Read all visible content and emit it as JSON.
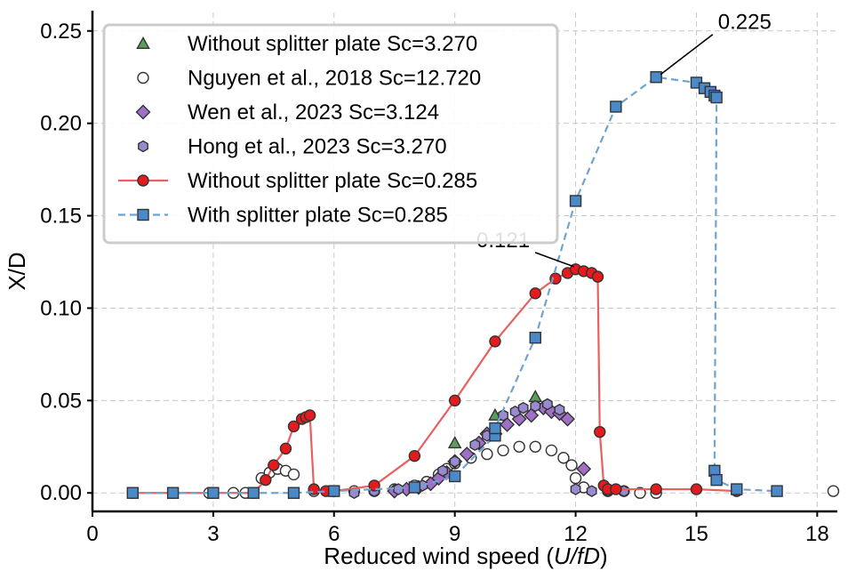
{
  "chart_data": {
    "type": "scatter",
    "xlabel_main": "Reduced wind speed (",
    "xlabel_italic": "U/fD",
    "xlabel_end": ")",
    "ylabel": "X/D",
    "xlim": [
      0,
      18.5
    ],
    "ylim": [
      -0.01,
      0.26
    ],
    "xticks": [
      0,
      3,
      6,
      9,
      12,
      15,
      18
    ],
    "xtick_labels": [
      "0",
      "3",
      "6",
      "9",
      "12",
      "15",
      "18"
    ],
    "yticks": [
      0.0,
      0.05,
      0.1,
      0.15,
      0.2,
      0.25
    ],
    "ytick_labels": [
      "0.00",
      "0.05",
      "0.10",
      "0.15",
      "0.20",
      "0.25"
    ],
    "grid": true,
    "legend_position": "top-left",
    "series": [
      {
        "name": "Without splitter plate Sc=3.270",
        "marker": "triangle",
        "color": "#5a9e5a",
        "line": "none",
        "points": [
          [
            9.0,
            0.027
          ],
          [
            10.0,
            0.042
          ],
          [
            11.0,
            0.052
          ]
        ]
      },
      {
        "name": "Nguyen et al., 2018 Sc=12.720",
        "marker": "circle-open",
        "color": "#ffffff",
        "line": "none",
        "points": [
          [
            2.9,
            0.0
          ],
          [
            3.5,
            0.0
          ],
          [
            3.8,
            0.0
          ],
          [
            4.2,
            0.008
          ],
          [
            4.4,
            0.011
          ],
          [
            4.6,
            0.013
          ],
          [
            4.8,
            0.012
          ],
          [
            5.0,
            0.01
          ],
          [
            5.5,
            0.001
          ],
          [
            6.0,
            0.001
          ],
          [
            6.5,
            0.001
          ],
          [
            7.0,
            0.001
          ],
          [
            7.5,
            0.002
          ],
          [
            8.0,
            0.004
          ],
          [
            8.3,
            0.006
          ],
          [
            8.6,
            0.01
          ],
          [
            8.8,
            0.013
          ],
          [
            9.0,
            0.016
          ],
          [
            9.4,
            0.019
          ],
          [
            9.8,
            0.021
          ],
          [
            10.2,
            0.023
          ],
          [
            10.6,
            0.025
          ],
          [
            11.0,
            0.025
          ],
          [
            11.4,
            0.023
          ],
          [
            11.7,
            0.019
          ],
          [
            11.9,
            0.015
          ],
          [
            12.0,
            0.008
          ],
          [
            12.2,
            0.003
          ],
          [
            12.8,
            0.001
          ],
          [
            13.2,
            0.001
          ],
          [
            13.6,
            0.0
          ],
          [
            14.0,
            0.0
          ],
          [
            18.4,
            0.001
          ]
        ]
      },
      {
        "name": "Wen et al., 2023 Sc=3.124",
        "marker": "diamond",
        "color": "#a070c8",
        "line": "none",
        "points": [
          [
            7.5,
            0.001
          ],
          [
            7.8,
            0.002
          ],
          [
            8.1,
            0.003
          ],
          [
            8.4,
            0.005
          ],
          [
            8.6,
            0.008
          ],
          [
            8.8,
            0.011
          ],
          [
            9.0,
            0.017
          ],
          [
            9.3,
            0.021
          ],
          [
            9.6,
            0.027
          ],
          [
            9.8,
            0.032
          ],
          [
            10.0,
            0.032
          ],
          [
            10.3,
            0.037
          ],
          [
            10.6,
            0.04
          ],
          [
            10.9,
            0.042
          ],
          [
            11.2,
            0.046
          ],
          [
            11.4,
            0.044
          ],
          [
            11.6,
            0.043
          ],
          [
            11.8,
            0.04
          ],
          [
            12.2,
            0.013
          ]
        ]
      },
      {
        "name": "Hong et al., 2023 Sc=3.270",
        "marker": "hexagon",
        "color": "#9a8ad0",
        "line": "none",
        "points": [
          [
            6.5,
            0.0
          ],
          [
            7.0,
            0.001
          ],
          [
            7.6,
            0.002
          ],
          [
            8.2,
            0.004
          ],
          [
            8.7,
            0.012
          ],
          [
            9.0,
            0.017
          ],
          [
            9.5,
            0.026
          ],
          [
            9.8,
            0.031
          ],
          [
            10.2,
            0.042
          ],
          [
            10.5,
            0.044
          ],
          [
            10.7,
            0.046
          ],
          [
            11.0,
            0.047
          ],
          [
            11.3,
            0.048
          ],
          [
            11.6,
            0.045
          ],
          [
            12.0,
            0.002
          ],
          [
            12.4,
            0.001
          ],
          [
            12.8,
            0.001
          ],
          [
            13.2,
            0.001
          ]
        ]
      },
      {
        "name": "Without splitter plate Sc=0.285",
        "marker": "circle",
        "color": "#e41a1c",
        "linecolor": "#e86060",
        "line": "solid",
        "points": [
          [
            1.0,
            0.0
          ],
          [
            2.0,
            0.0
          ],
          [
            3.0,
            0.0
          ],
          [
            4.0,
            0.0
          ],
          [
            4.3,
            0.007
          ],
          [
            4.5,
            0.015
          ],
          [
            4.8,
            0.024
          ],
          [
            5.0,
            0.036
          ],
          [
            5.2,
            0.04
          ],
          [
            5.3,
            0.041
          ],
          [
            5.4,
            0.042
          ],
          [
            5.5,
            0.002
          ],
          [
            5.8,
            0.001
          ],
          [
            6.0,
            0.001
          ],
          [
            7.0,
            0.004
          ],
          [
            8.0,
            0.02
          ],
          [
            9.0,
            0.05
          ],
          [
            10.0,
            0.082
          ],
          [
            11.0,
            0.108
          ],
          [
            11.5,
            0.116
          ],
          [
            11.8,
            0.119
          ],
          [
            12.0,
            0.121
          ],
          [
            12.2,
            0.12
          ],
          [
            12.4,
            0.119
          ],
          [
            12.55,
            0.117
          ],
          [
            12.6,
            0.033
          ],
          [
            12.7,
            0.004
          ],
          [
            12.8,
            0.002
          ],
          [
            13.0,
            0.002
          ],
          [
            14.0,
            0.002
          ],
          [
            15.0,
            0.002
          ],
          [
            16.0,
            0.001
          ]
        ]
      },
      {
        "name": "With splitter plate Sc=0.285",
        "marker": "square",
        "color": "#4a8ac8",
        "linecolor": "#6fa3d0",
        "line": "dashed",
        "points": [
          [
            1.0,
            0.0
          ],
          [
            2.0,
            0.0
          ],
          [
            3.0,
            0.0
          ],
          [
            4.0,
            0.0
          ],
          [
            5.0,
            0.0
          ],
          [
            6.0,
            0.001
          ],
          [
            8.0,
            0.003
          ],
          [
            9.0,
            0.009
          ],
          [
            10.0,
            0.031
          ],
          [
            10.0,
            0.035
          ],
          [
            11.0,
            0.084
          ],
          [
            12.0,
            0.158
          ],
          [
            13.0,
            0.209
          ],
          [
            14.0,
            0.225
          ],
          [
            15.0,
            0.222
          ],
          [
            15.2,
            0.219
          ],
          [
            15.35,
            0.217
          ],
          [
            15.45,
            0.215
          ],
          [
            15.5,
            0.214
          ],
          [
            15.45,
            0.012
          ],
          [
            15.5,
            0.007
          ],
          [
            16.0,
            0.002
          ],
          [
            17.0,
            0.001
          ]
        ]
      }
    ],
    "annotations": [
      {
        "text": "0.225",
        "x": 14.0,
        "y": 0.225,
        "text_x": 16.2,
        "text_y": 0.251
      },
      {
        "text": "0.121",
        "x": 12.0,
        "y": 0.121,
        "text_x": 10.2,
        "text_y": 0.133
      }
    ]
  }
}
